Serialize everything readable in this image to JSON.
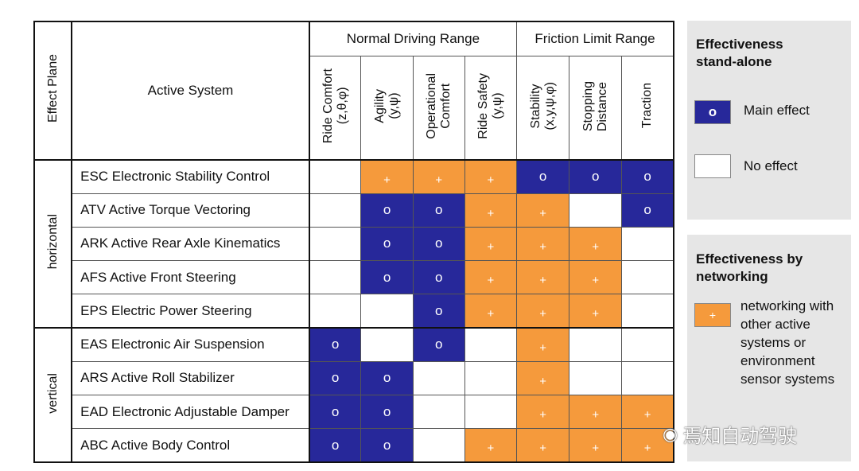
{
  "header": {
    "effect_plane": "Effect Plane",
    "active_system": "Active System",
    "ranges": [
      "Normal Driving Range",
      "Friction Limit Range"
    ],
    "columns": [
      {
        "line1": "Ride Comfort",
        "line2": "(z,θ,φ)"
      },
      {
        "line1": "Agility",
        "line2": "(y,ψ)"
      },
      {
        "line1": "Operational",
        "line2": "Comfort"
      },
      {
        "line1": "Ride Safety",
        "line2": "(y,ψ)"
      },
      {
        "line1": "Stability",
        "line2": "(x,y,ψ,φ)"
      },
      {
        "line1": "Stopping",
        "line2": "Distance"
      },
      {
        "line1": "Traction",
        "line2": ""
      }
    ]
  },
  "planes": [
    "horizontal",
    "vertical"
  ],
  "symbols": {
    "main": "o",
    "net": "+"
  },
  "rows": [
    {
      "system": "ESC Electronic Stability Control",
      "cells": [
        "none",
        "net",
        "net",
        "net",
        "main",
        "main",
        "main"
      ]
    },
    {
      "system": "ATV Active Torque Vectoring",
      "cells": [
        "none",
        "main",
        "main",
        "net",
        "net",
        "none",
        "main"
      ]
    },
    {
      "system": "ARK Active Rear Axle Kinematics",
      "cells": [
        "none",
        "main",
        "main",
        "net",
        "net",
        "net",
        "none"
      ]
    },
    {
      "system": "AFS Active Front Steering",
      "cells": [
        "none",
        "main",
        "main",
        "net",
        "net",
        "net",
        "none"
      ]
    },
    {
      "system": "EPS Electric Power Steering",
      "cells": [
        "none",
        "none",
        "main",
        "net",
        "net",
        "net",
        "none"
      ]
    },
    {
      "system": "EAS Electronic Air Suspension",
      "cells": [
        "main",
        "none",
        "main",
        "none",
        "net",
        "none",
        "none"
      ]
    },
    {
      "system": "ARS Active Roll Stabilizer",
      "cells": [
        "main",
        "main",
        "none",
        "none",
        "net",
        "none",
        "none"
      ]
    },
    {
      "system": "EAD Electronic Adjustable Damper",
      "cells": [
        "main",
        "main",
        "none",
        "none",
        "net",
        "net",
        "net"
      ]
    },
    {
      "system": "ABC Active Body Control",
      "cells": [
        "main",
        "main",
        "none",
        "net",
        "net",
        "net",
        "net"
      ]
    }
  ],
  "legend": {
    "standalone_title": [
      "Effectiveness",
      "stand-alone"
    ],
    "main_effect": "Main effect",
    "no_effect": "No effect",
    "networking_title": [
      "Effectiveness by",
      "networking"
    ],
    "networking_text": [
      "networking with",
      "other active",
      "systems or",
      "environment",
      "sensor systems"
    ]
  },
  "watermark": "焉知自动驾驶",
  "colors": {
    "main": "#27289a",
    "net": "#f59a3c",
    "none": "#ffffff",
    "legend_bg": "#e6e6e6"
  }
}
